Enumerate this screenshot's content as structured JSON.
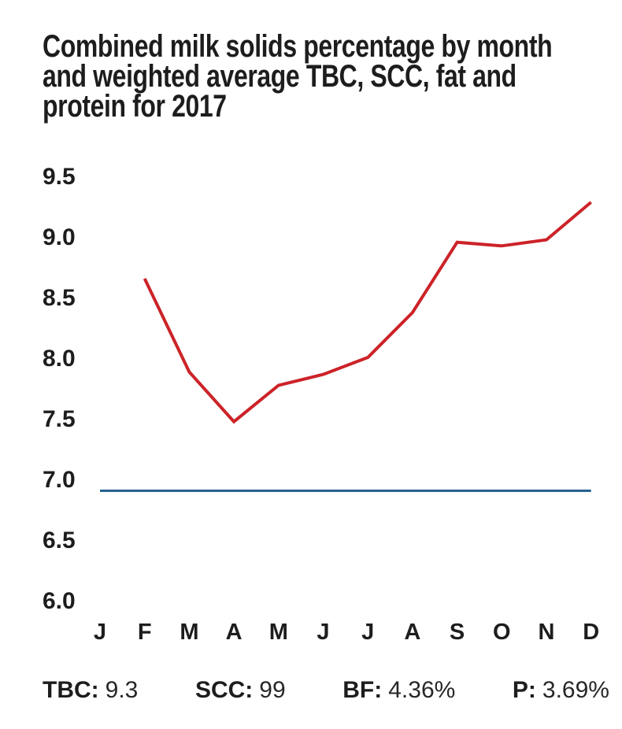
{
  "title": {
    "full": "Combined milk solids percentage by month and weighted average TBC, SCC, fat and protein for 2017",
    "lines": [
      "Combined milk solids percentage by month",
      "and weighted average TBC, SCC, fat and",
      "protein for 2017"
    ]
  },
  "chart_data": {
    "type": "line",
    "title": "Combined milk solids percentage by month and weighted average TBC, SCC, fat and protein for 2017",
    "categories": [
      "J",
      "F",
      "M",
      "A",
      "M",
      "J",
      "J",
      "A",
      "S",
      "O",
      "N",
      "D"
    ],
    "series": [
      {
        "name": "combined-milk-solids-percentage",
        "color": "#cc2328",
        "stroke_width": 4,
        "values": [
          null,
          8.65,
          7.88,
          7.47,
          7.77,
          7.86,
          8.0,
          8.37,
          8.95,
          8.92,
          8.97,
          9.28
        ]
      },
      {
        "name": "weighted-average-reference",
        "color": "#1e5e8c",
        "stroke_width": 3,
        "values": [
          6.9,
          6.9,
          6.9,
          6.9,
          6.9,
          6.9,
          6.9,
          6.9,
          6.9,
          6.9,
          6.9,
          6.9
        ]
      }
    ],
    "yticks": [
      "9.5",
      "9.0",
      "8.5",
      "8.0",
      "7.5",
      "7.0",
      "6.5",
      "6.0"
    ],
    "ylim": [
      6.0,
      9.5
    ],
    "xlabel": "",
    "ylabel": "",
    "grid": false,
    "legend": "none"
  },
  "stats": [
    {
      "label": "TBC:",
      "value": "9.3"
    },
    {
      "label": "SCC:",
      "value": "99"
    },
    {
      "label": "BF:",
      "value": "4.36%"
    },
    {
      "label": "P:",
      "value": "3.69%"
    }
  ],
  "colors": {
    "text": "#1d1d1d",
    "line_red": "#cc2328",
    "line_blue": "#1e5e8c",
    "background": "#ffffff"
  }
}
